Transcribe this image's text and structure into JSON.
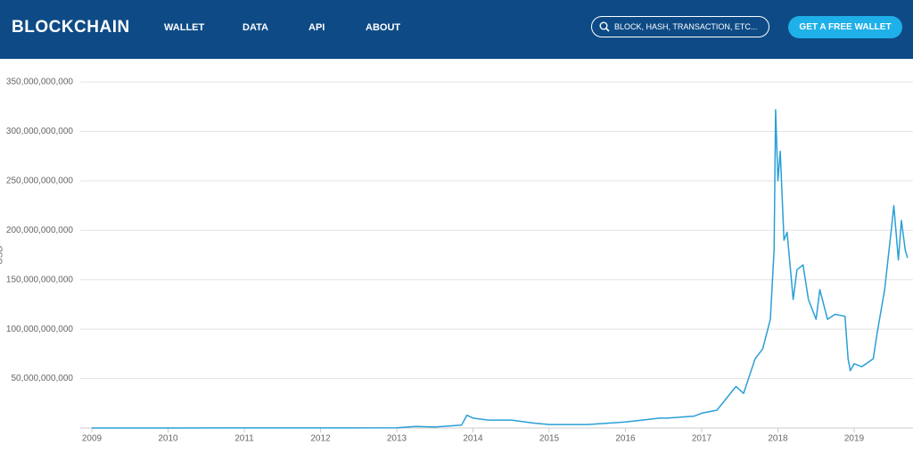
{
  "header": {
    "logo": "BLOCKCHAIN",
    "nav": [
      "WALLET",
      "DATA",
      "API",
      "ABOUT"
    ],
    "search_placeholder": "BLOCK, HASH, TRANSACTION, ETC...",
    "button": "GET A FREE WALLET"
  },
  "chart_data": {
    "type": "line",
    "y_label": "USD",
    "color": "#2a9fd6",
    "x": [
      2009,
      2010,
      2011,
      2012,
      2013,
      2013.25,
      2013.5,
      2013.85,
      2013.92,
      2014.0,
      2014.2,
      2014.5,
      2014.8,
      2015.0,
      2015.5,
      2016.0,
      2016.45,
      2016.55,
      2016.9,
      2017.0,
      2017.2,
      2017.45,
      2017.55,
      2017.7,
      2017.8,
      2017.9,
      2017.95,
      2017.97,
      2018.0,
      2018.03,
      2018.08,
      2018.12,
      2018.2,
      2018.25,
      2018.33,
      2018.4,
      2018.5,
      2018.55,
      2018.65,
      2018.75,
      2018.88,
      2018.92,
      2018.95,
      2019.0,
      2019.1,
      2019.25,
      2019.3,
      2019.4,
      2019.5,
      2019.52,
      2019.58,
      2019.62,
      2019.67,
      2019.7
    ],
    "values": [
      0,
      0,
      100000000,
      50000000,
      150000000,
      1500000000,
      1000000000,
      3000000000,
      13000000000,
      10000000000,
      8000000000,
      8000000000,
      5000000000,
      3500000000,
      3500000000,
      6000000000,
      10000000000,
      10000000000,
      12000000000,
      15000000000,
      18000000000,
      42000000000,
      35000000000,
      70000000000,
      80000000000,
      110000000000,
      180000000000,
      322000000000,
      250000000000,
      280000000000,
      190000000000,
      198000000000,
      130000000000,
      160000000000,
      165000000000,
      130000000000,
      110000000000,
      140000000000,
      110000000000,
      115000000000,
      113000000000,
      70000000000,
      58000000000,
      65000000000,
      62000000000,
      70000000000,
      95000000000,
      140000000000,
      210000000000,
      225000000000,
      170000000000,
      210000000000,
      180000000000,
      172000000000
    ],
    "xlim": [
      2009,
      2019.75
    ],
    "xticks": [
      2009,
      2010,
      2011,
      2012,
      2013,
      2014,
      2015,
      2016,
      2017,
      2018,
      2019
    ],
    "ylim": [
      0,
      350000000000
    ],
    "yticks": [
      {
        "value": 50000000000,
        "label": "50,000,000,000"
      },
      {
        "value": 100000000000,
        "label": "100,000,000,000"
      },
      {
        "value": 150000000000,
        "label": "150,000,000,000"
      },
      {
        "value": 200000000000,
        "label": "200,000,000,000"
      },
      {
        "value": 250000000000,
        "label": "250,000,000,000"
      },
      {
        "value": 300000000000,
        "label": "300,000,000,000"
      },
      {
        "value": 350000000000,
        "label": "350,000,000,000"
      }
    ],
    "grid": true
  }
}
